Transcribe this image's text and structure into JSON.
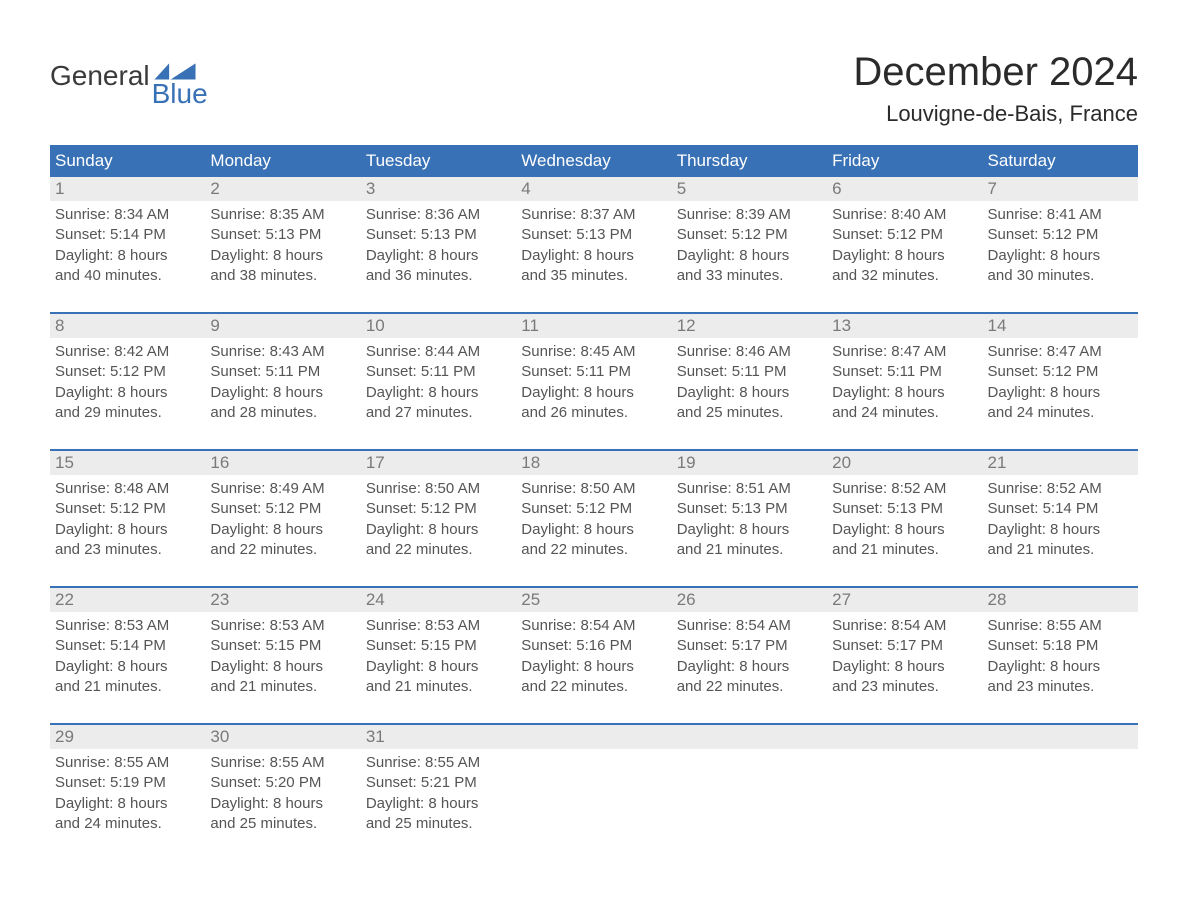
{
  "logo": {
    "word1": "General",
    "word2": "Blue"
  },
  "title": "December 2024",
  "location": "Louvigne-de-Bais, France",
  "colors": {
    "header_bg": "#3871b5",
    "header_fg": "#ffffff",
    "daynum_bg": "#ececec",
    "daynum_fg": "#7a7a7a",
    "body_text": "#555555",
    "rule": "#3871b5",
    "logo_blue": "#3871b5"
  },
  "day_headers": [
    "Sunday",
    "Monday",
    "Tuesday",
    "Wednesday",
    "Thursday",
    "Friday",
    "Saturday"
  ],
  "weeks": [
    [
      {
        "n": "1",
        "sr": "Sunrise: 8:34 AM",
        "ss": "Sunset: 5:14 PM",
        "d1": "Daylight: 8 hours",
        "d2": "and 40 minutes."
      },
      {
        "n": "2",
        "sr": "Sunrise: 8:35 AM",
        "ss": "Sunset: 5:13 PM",
        "d1": "Daylight: 8 hours",
        "d2": "and 38 minutes."
      },
      {
        "n": "3",
        "sr": "Sunrise: 8:36 AM",
        "ss": "Sunset: 5:13 PM",
        "d1": "Daylight: 8 hours",
        "d2": "and 36 minutes."
      },
      {
        "n": "4",
        "sr": "Sunrise: 8:37 AM",
        "ss": "Sunset: 5:13 PM",
        "d1": "Daylight: 8 hours",
        "d2": "and 35 minutes."
      },
      {
        "n": "5",
        "sr": "Sunrise: 8:39 AM",
        "ss": "Sunset: 5:12 PM",
        "d1": "Daylight: 8 hours",
        "d2": "and 33 minutes."
      },
      {
        "n": "6",
        "sr": "Sunrise: 8:40 AM",
        "ss": "Sunset: 5:12 PM",
        "d1": "Daylight: 8 hours",
        "d2": "and 32 minutes."
      },
      {
        "n": "7",
        "sr": "Sunrise: 8:41 AM",
        "ss": "Sunset: 5:12 PM",
        "d1": "Daylight: 8 hours",
        "d2": "and 30 minutes."
      }
    ],
    [
      {
        "n": "8",
        "sr": "Sunrise: 8:42 AM",
        "ss": "Sunset: 5:12 PM",
        "d1": "Daylight: 8 hours",
        "d2": "and 29 minutes."
      },
      {
        "n": "9",
        "sr": "Sunrise: 8:43 AM",
        "ss": "Sunset: 5:11 PM",
        "d1": "Daylight: 8 hours",
        "d2": "and 28 minutes."
      },
      {
        "n": "10",
        "sr": "Sunrise: 8:44 AM",
        "ss": "Sunset: 5:11 PM",
        "d1": "Daylight: 8 hours",
        "d2": "and 27 minutes."
      },
      {
        "n": "11",
        "sr": "Sunrise: 8:45 AM",
        "ss": "Sunset: 5:11 PM",
        "d1": "Daylight: 8 hours",
        "d2": "and 26 minutes."
      },
      {
        "n": "12",
        "sr": "Sunrise: 8:46 AM",
        "ss": "Sunset: 5:11 PM",
        "d1": "Daylight: 8 hours",
        "d2": "and 25 minutes."
      },
      {
        "n": "13",
        "sr": "Sunrise: 8:47 AM",
        "ss": "Sunset: 5:11 PM",
        "d1": "Daylight: 8 hours",
        "d2": "and 24 minutes."
      },
      {
        "n": "14",
        "sr": "Sunrise: 8:47 AM",
        "ss": "Sunset: 5:12 PM",
        "d1": "Daylight: 8 hours",
        "d2": "and 24 minutes."
      }
    ],
    [
      {
        "n": "15",
        "sr": "Sunrise: 8:48 AM",
        "ss": "Sunset: 5:12 PM",
        "d1": "Daylight: 8 hours",
        "d2": "and 23 minutes."
      },
      {
        "n": "16",
        "sr": "Sunrise: 8:49 AM",
        "ss": "Sunset: 5:12 PM",
        "d1": "Daylight: 8 hours",
        "d2": "and 22 minutes."
      },
      {
        "n": "17",
        "sr": "Sunrise: 8:50 AM",
        "ss": "Sunset: 5:12 PM",
        "d1": "Daylight: 8 hours",
        "d2": "and 22 minutes."
      },
      {
        "n": "18",
        "sr": "Sunrise: 8:50 AM",
        "ss": "Sunset: 5:12 PM",
        "d1": "Daylight: 8 hours",
        "d2": "and 22 minutes."
      },
      {
        "n": "19",
        "sr": "Sunrise: 8:51 AM",
        "ss": "Sunset: 5:13 PM",
        "d1": "Daylight: 8 hours",
        "d2": "and 21 minutes."
      },
      {
        "n": "20",
        "sr": "Sunrise: 8:52 AM",
        "ss": "Sunset: 5:13 PM",
        "d1": "Daylight: 8 hours",
        "d2": "and 21 minutes."
      },
      {
        "n": "21",
        "sr": "Sunrise: 8:52 AM",
        "ss": "Sunset: 5:14 PM",
        "d1": "Daylight: 8 hours",
        "d2": "and 21 minutes."
      }
    ],
    [
      {
        "n": "22",
        "sr": "Sunrise: 8:53 AM",
        "ss": "Sunset: 5:14 PM",
        "d1": "Daylight: 8 hours",
        "d2": "and 21 minutes."
      },
      {
        "n": "23",
        "sr": "Sunrise: 8:53 AM",
        "ss": "Sunset: 5:15 PM",
        "d1": "Daylight: 8 hours",
        "d2": "and 21 minutes."
      },
      {
        "n": "24",
        "sr": "Sunrise: 8:53 AM",
        "ss": "Sunset: 5:15 PM",
        "d1": "Daylight: 8 hours",
        "d2": "and 21 minutes."
      },
      {
        "n": "25",
        "sr": "Sunrise: 8:54 AM",
        "ss": "Sunset: 5:16 PM",
        "d1": "Daylight: 8 hours",
        "d2": "and 22 minutes."
      },
      {
        "n": "26",
        "sr": "Sunrise: 8:54 AM",
        "ss": "Sunset: 5:17 PM",
        "d1": "Daylight: 8 hours",
        "d2": "and 22 minutes."
      },
      {
        "n": "27",
        "sr": "Sunrise: 8:54 AM",
        "ss": "Sunset: 5:17 PM",
        "d1": "Daylight: 8 hours",
        "d2": "and 23 minutes."
      },
      {
        "n": "28",
        "sr": "Sunrise: 8:55 AM",
        "ss": "Sunset: 5:18 PM",
        "d1": "Daylight: 8 hours",
        "d2": "and 23 minutes."
      }
    ],
    [
      {
        "n": "29",
        "sr": "Sunrise: 8:55 AM",
        "ss": "Sunset: 5:19 PM",
        "d1": "Daylight: 8 hours",
        "d2": "and 24 minutes."
      },
      {
        "n": "30",
        "sr": "Sunrise: 8:55 AM",
        "ss": "Sunset: 5:20 PM",
        "d1": "Daylight: 8 hours",
        "d2": "and 25 minutes."
      },
      {
        "n": "31",
        "sr": "Sunrise: 8:55 AM",
        "ss": "Sunset: 5:21 PM",
        "d1": "Daylight: 8 hours",
        "d2": "and 25 minutes."
      },
      null,
      null,
      null,
      null
    ]
  ]
}
